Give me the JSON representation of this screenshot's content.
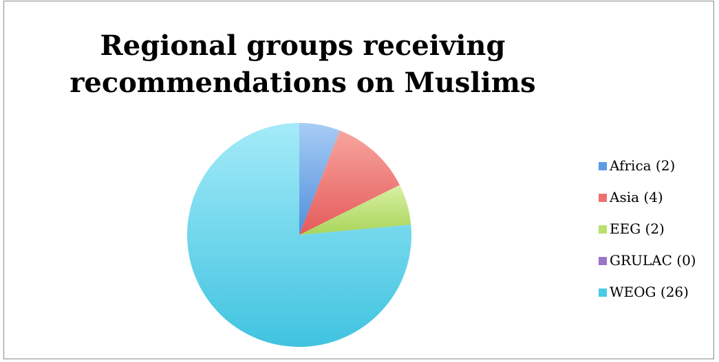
{
  "chart_data": {
    "type": "pie",
    "title_lines": [
      "Regional groups receiving",
      "recommendations on Muslims"
    ],
    "categories": [
      "Africa (2)",
      "Asia (4)",
      "EEG (2)",
      "GRULAC (0)",
      "WEOG (26)"
    ],
    "values": [
      2,
      4,
      2,
      0,
      26
    ],
    "colors": [
      "#5b9be6",
      "#ef7070",
      "#b9e06a",
      "#9a75c8",
      "#4bcbe6"
    ],
    "legend_position": "right",
    "start_angle": "top, clockwise"
  }
}
